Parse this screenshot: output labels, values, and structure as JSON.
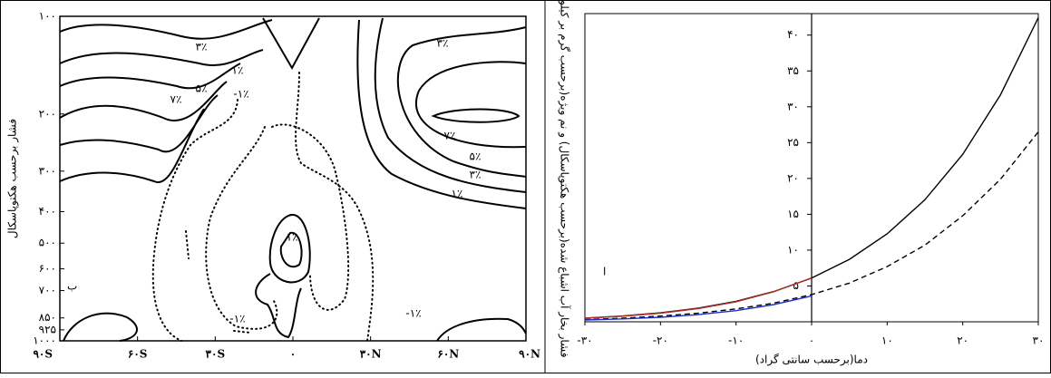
{
  "chart_data": [
    {
      "type": "contour",
      "panel_label": "ب",
      "ylabel": "فشار برحسب هکتوپاسکال",
      "xlim": [
        -90,
        90
      ],
      "xticks": [
        {
          "value": -90,
          "label": "۹۰S"
        },
        {
          "value": -60,
          "label": "۶۰S"
        },
        {
          "value": -30,
          "label": "۳۰S"
        },
        {
          "value": 0,
          "label": "۰"
        },
        {
          "value": 30,
          "label": "۳۰N"
        },
        {
          "value": 60,
          "label": "۶۰N"
        },
        {
          "value": 90,
          "label": "۹۰N"
        }
      ],
      "ylim": [
        1000,
        100
      ],
      "log_scale_y": true,
      "yticks": [
        {
          "value": 100,
          "label": "۱۰۰"
        },
        {
          "value": 200,
          "label": "۲۰۰"
        },
        {
          "value": 300,
          "label": "۳۰۰"
        },
        {
          "value": 400,
          "label": "۴۰۰"
        },
        {
          "value": 500,
          "label": "۵۰۰"
        },
        {
          "value": 600,
          "label": "۶۰۰"
        },
        {
          "value": 700,
          "label": "۷۰۰"
        },
        {
          "value": 850,
          "label": "۸۵۰"
        },
        {
          "value": 925,
          "label": "۹۲۵"
        },
        {
          "value": 1000,
          "label": "۱۰۰۰"
        }
      ],
      "annotations": [
        "۳٪",
        "۱٪",
        "۵٪",
        "-۱٪",
        "۷٪",
        "۳٪",
        "۷٪",
        "۵٪",
        "۳٪",
        "۱٪",
        "۱٪",
        "-۱٪",
        "-۱٪"
      ]
    },
    {
      "type": "line",
      "panel_label": "ا",
      "xlabel": "دما(برحسب سانتی گراد)",
      "ylabel": "فشار بخار آب اشباع شده(برحسب هکتوپاسکال) و نم ویژه(برحسب گرم بر کیلوگرم)",
      "x": [
        -30,
        -25,
        -20,
        -15,
        -10,
        -5,
        0,
        5,
        10,
        15,
        20,
        25,
        30
      ],
      "xlim": [
        -30,
        30
      ],
      "xticks": [
        {
          "value": -30,
          "label": "-۳۰"
        },
        {
          "value": -20,
          "label": "-۲۰"
        },
        {
          "value": -10,
          "label": "-۱۰"
        },
        {
          "value": 0,
          "label": "۰"
        },
        {
          "value": 10,
          "label": "۱۰"
        },
        {
          "value": 20,
          "label": "۲۰"
        },
        {
          "value": 30,
          "label": "۳۰"
        }
      ],
      "ylim": [
        0,
        43
      ],
      "yticks": [
        {
          "value": 5,
          "label": "۵"
        },
        {
          "value": 10,
          "label": "۱۰"
        },
        {
          "value": 15,
          "label": "۱۵"
        },
        {
          "value": 20,
          "label": "۲۰"
        },
        {
          "value": 25,
          "label": "۲۵"
        },
        {
          "value": 30,
          "label": "۳۰"
        },
        {
          "value": 35,
          "label": "۳۵"
        },
        {
          "value": 40,
          "label": "۴۰"
        }
      ],
      "series": [
        {
          "color": "#000000",
          "dashed": false,
          "values": [
            0.51,
            0.81,
            1.25,
            1.91,
            2.86,
            4.22,
            6.11,
            8.72,
            12.27,
            17.04,
            23.37,
            31.67,
            42.43
          ]
        },
        {
          "color": "#000000",
          "dashed": true,
          "values": [
            0.3,
            0.5,
            0.8,
            1.2,
            1.8,
            2.6,
            3.8,
            5.4,
            7.7,
            10.7,
            14.8,
            19.9,
            26.5
          ]
        },
        {
          "color": "#b03028",
          "dashed": false,
          "values": [
            0.5,
            0.78,
            1.2,
            1.85,
            2.8,
            4.2,
            6.11,
            null,
            null,
            null,
            null,
            null,
            null
          ]
        },
        {
          "color": "#2030d0",
          "dashed": false,
          "values": [
            0.25,
            0.4,
            0.63,
            1.0,
            1.55,
            2.4,
            3.6,
            null,
            null,
            null,
            null,
            null,
            null
          ]
        }
      ]
    }
  ]
}
